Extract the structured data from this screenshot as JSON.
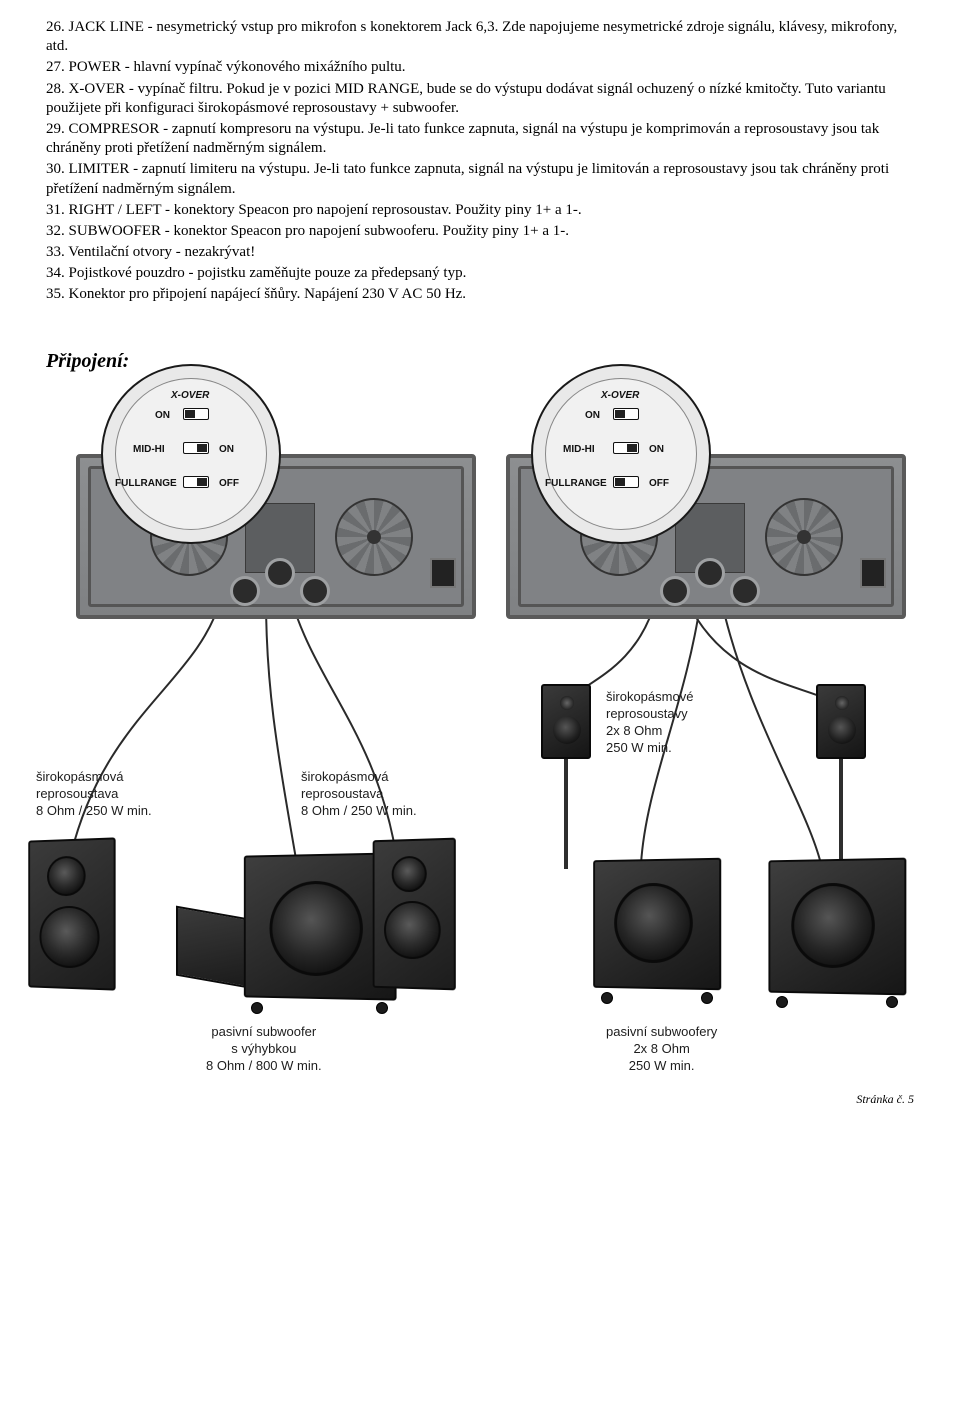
{
  "list": [
    {
      "n": "26.",
      "t": "JACK LINE - nesymetrický vstup pro mikrofon s konektorem Jack 6,3.  Zde napojujeme nesymetrické zdroje signálu, klávesy, mikrofony, atd."
    },
    {
      "n": "27.",
      "t": "POWER - hlavní vypínač výkonového mixážního pultu."
    },
    {
      "n": "28.",
      "t": "X-OVER - vypínač filtru. Pokud je v pozici MID RANGE, bude se do výstupu dodávat signál ochuzený o nízké kmitočty. Tuto variantu použijete při konfiguraci širokopásmové reprosoustavy + subwoofer."
    },
    {
      "n": "29.",
      "t": "COMPRESOR - zapnutí kompresoru na výstupu. Je-li tato funkce zapnuta, signál na výstupu je komprimován a reprosoustavy jsou tak chráněny proti přetížení nadměrným signálem."
    },
    {
      "n": "30.",
      "t": "LIMITER - zapnutí limiteru na výstupu. Je-li tato funkce zapnuta, signál na výstupu je limitován a reprosoustavy jsou tak chráněny proti přetížení nadměrným signálem."
    },
    {
      "n": "31.",
      "t": "RIGHT / LEFT - konektory Speacon pro napojení reprosoustav. Použity piny 1+ a 1-."
    },
    {
      "n": "32.",
      "t": "SUBWOOFER - konektor Speacon pro napojení subwooferu. Použity piny 1+ a 1-."
    },
    {
      "n": "33.",
      "t": "Ventilační otvory - nezakrývat!"
    },
    {
      "n": "34.",
      "t": "Pojistkové pouzdro - pojistku zaměňujte pouze za předepsaný typ."
    },
    {
      "n": "35.",
      "t": "Konektor pro připojení napájecí šňůry. Napájení 230 V AC 50 Hz."
    }
  ],
  "section_title": "Připojení:",
  "dial": {
    "title": "X-OVER",
    "rows": [
      {
        "left": "ON",
        "right": ""
      },
      {
        "left": "MID-HI",
        "right": "ON"
      },
      {
        "left": "FULLRANGE",
        "right": "OFF"
      }
    ]
  },
  "captions": {
    "fr_left": "širokopásmová\nreprosoustava\n8 Ohm / 250 W min.",
    "fr_mid": "širokopásmová\nreprosoustava\n8 Ohm / 250 W min.",
    "sat_right": "širokopásmové\nreprosoustavy\n2x 8 Ohm\n250 W min.",
    "sub_left": "pasivní subwoofer\ns výhybkou\n8 Ohm / 800 W min.",
    "sub_right": "pasivní subwoofery\n2x 8 Ohm\n250 W min."
  },
  "footer": "Stránka č. 5",
  "colors": {
    "wire": "#2a2a2a"
  }
}
